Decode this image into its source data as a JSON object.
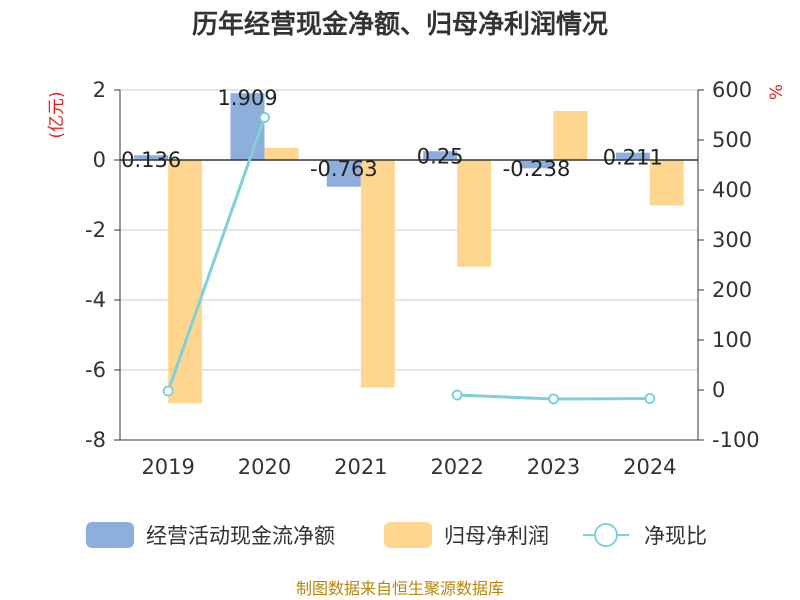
{
  "title": "历年经营现金净额、归母净利润情况",
  "left_unit": "(亿元)",
  "right_unit": "%",
  "source": "制图数据来自恒生聚源数据库",
  "colors": {
    "cash": "#8eaedc",
    "profit": "#ffd68f",
    "ratio": "#7fd0d8"
  },
  "chart_data": {
    "type": "bar",
    "categories": [
      "2019",
      "2020",
      "2021",
      "2022",
      "2023",
      "2024"
    ],
    "series": [
      {
        "name": "经营活动现金流净额",
        "type": "bar",
        "axis": "left",
        "values": [
          0.136,
          1.909,
          -0.763,
          0.25,
          -0.238,
          0.211
        ],
        "labels": [
          "0.136",
          "1.909",
          "-0.763",
          "0.25",
          "-0.238",
          "0.211"
        ]
      },
      {
        "name": "归母净利润",
        "type": "bar",
        "axis": "left",
        "values": [
          -6.95,
          0.35,
          -6.5,
          -3.05,
          1.4,
          -1.3
        ]
      },
      {
        "name": "净现比",
        "type": "line",
        "axis": "right",
        "values": [
          -2,
          545,
          null,
          -10,
          -18,
          -17
        ]
      }
    ],
    "left_axis": {
      "ylim": [
        -8,
        2
      ],
      "ticks": [
        "2",
        "0",
        "-2",
        "-4",
        "-6",
        "-8"
      ]
    },
    "right_axis": {
      "ylim": [
        -100,
        600
      ],
      "ticks": [
        "600",
        "500",
        "400",
        "300",
        "200",
        "100",
        "0",
        "-100"
      ]
    },
    "grid": true,
    "legend_position": "bottom"
  }
}
